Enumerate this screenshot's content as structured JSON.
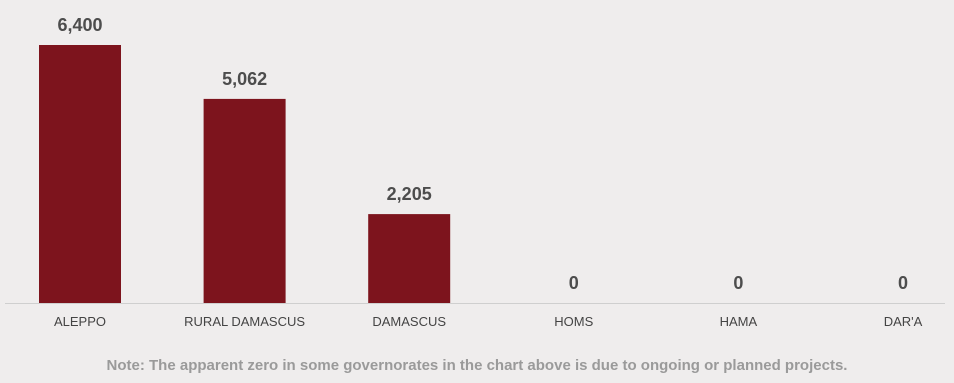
{
  "chart_data": {
    "type": "bar",
    "categories": [
      "ALEPPO",
      "RURAL DAMASCUS",
      "DAMASCUS",
      "HOMS",
      "HAMA",
      "DAR'A"
    ],
    "values": [
      6400,
      5062,
      2205,
      0,
      0,
      0
    ],
    "value_labels": [
      "6,400",
      "5,062",
      "2,205",
      "0",
      "0",
      "0"
    ],
    "ylim": [
      0,
      6400
    ],
    "grid": false,
    "legend": "none",
    "bar_color": "#7d141d",
    "note": "Note: The apparent zero in some governorates in the chart above is due to ongoing or planned projects."
  }
}
